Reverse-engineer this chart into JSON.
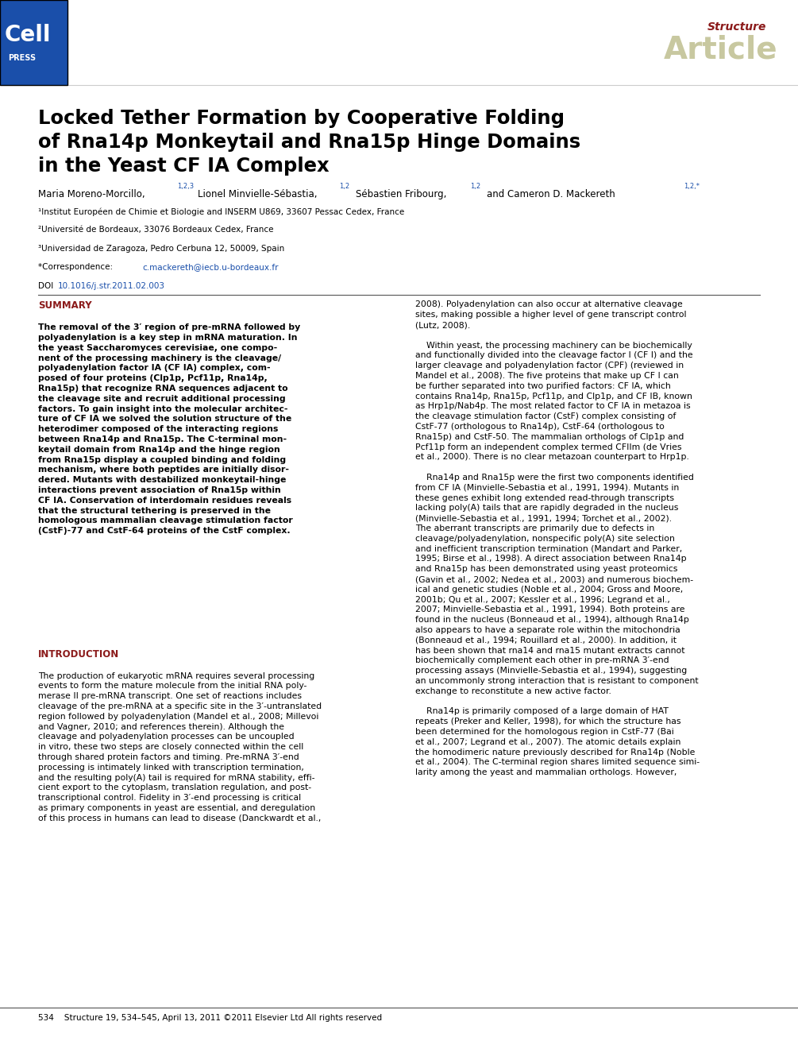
{
  "page_background": "#ffffff",
  "header_bar_color": "#1a4faa",
  "header_bar_width": 0.085,
  "header_bar_height": 0.082,
  "structure_label": "Structure",
  "article_label": "Article",
  "structure_color": "#8b1a1a",
  "article_color": "#c8c8a0",
  "title_line1": "Locked Tether Formation by Cooperative Folding",
  "title_line2": "of Rna14p Monkeytail and Rna15p Hinge Domains",
  "title_line3": "in the Yeast CF IA Complex",
  "affil1": "¹Institut Européen de Chimie et Biologie and INSERM U869, 33607 Pessac Cedex, France",
  "affil2": "²Université de Bordeaux, 33076 Bordeaux Cedex, France",
  "affil3": "³Universidad de Zaragoza, Pedro Cerbuna 12, 50009, Spain",
  "affil4_link": "c.mackereth@iecb.u-bordeaux.fr",
  "doi_link": "10.1016/j.str.2011.02.003",
  "link_color": "#1a4faa",
  "summary_heading": "SUMMARY",
  "summary_heading_color": "#8b1a1a",
  "intro_heading": "INTRODUCTION",
  "intro_heading_color": "#8b1a1a",
  "footer_text": "534    Structure 19, 534–545, April 13, 2011 ©2011 Elsevier Ltd All rights reserved",
  "divider_color": "#555555"
}
